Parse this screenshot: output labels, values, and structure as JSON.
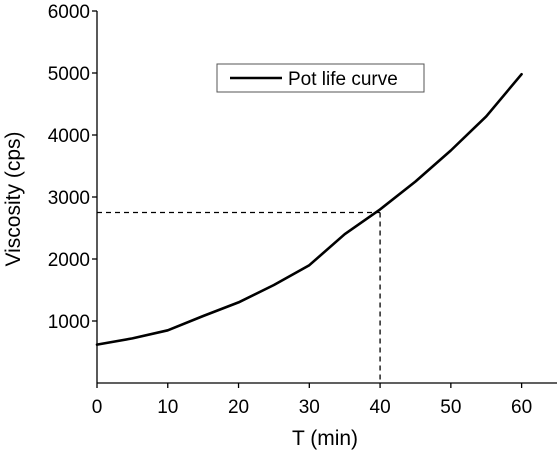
{
  "chart_data": {
    "type": "line",
    "title": "",
    "xlabel": "T (min)",
    "ylabel": "Viscosity (cps)",
    "xlim": [
      0,
      65
    ],
    "ylim": [
      0,
      6000
    ],
    "xticks": [
      0,
      10,
      20,
      30,
      40,
      50,
      60
    ],
    "yticks": [
      1000,
      2000,
      3000,
      4000,
      5000,
      6000
    ],
    "grid": false,
    "legend_position": "top-center",
    "series": [
      {
        "name": "Pot life curve",
        "color": "#000000",
        "style": "solid",
        "x": [
          0,
          5,
          10,
          15,
          20,
          25,
          30,
          35,
          40,
          45,
          50,
          55,
          60
        ],
        "y": [
          620,
          720,
          850,
          1080,
          1300,
          1580,
          1900,
          2400,
          2800,
          3250,
          3750,
          4300,
          4980
        ]
      }
    ],
    "reference_lines": {
      "style": "dashed",
      "color": "#000000",
      "x": 40,
      "y": 2750
    }
  }
}
